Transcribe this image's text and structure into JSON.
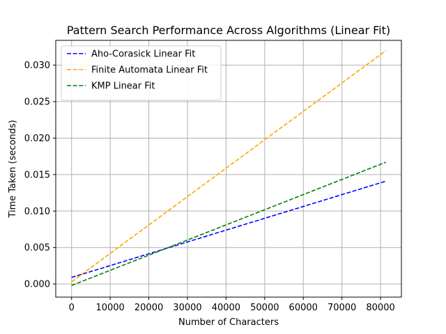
{
  "chart_data": {
    "type": "line",
    "title": "Pattern Search Performance Across Algorithms (Linear Fit)",
    "xlabel": "Number of Characters",
    "ylabel": "Time Taken (seconds)",
    "xlim": [
      -4100,
      85400
    ],
    "ylim": [
      -0.0018,
      0.0334
    ],
    "xticks": [
      0,
      10000,
      20000,
      30000,
      40000,
      50000,
      60000,
      70000,
      80000
    ],
    "xtick_labels": [
      "0",
      "10000",
      "20000",
      "30000",
      "40000",
      "50000",
      "60000",
      "70000",
      "80000"
    ],
    "yticks": [
      0.0,
      0.005,
      0.01,
      0.015,
      0.02,
      0.025,
      0.03
    ],
    "ytick_labels": [
      "0.000",
      "0.005",
      "0.010",
      "0.015",
      "0.020",
      "0.025",
      "0.030"
    ],
    "grid": true,
    "legend_position": "top-left",
    "series": [
      {
        "name": "Aho-Corasick Linear Fit",
        "color": "#0000ff",
        "style": "dashed",
        "x": [
          0,
          81400
        ],
        "y": [
          0.0009,
          0.0141
        ]
      },
      {
        "name": "Finite Automata Linear Fit",
        "color": "#ffa500",
        "style": "dashed",
        "x": [
          0,
          81400
        ],
        "y": [
          0.0003,
          0.032
        ]
      },
      {
        "name": "KMP Linear Fit",
        "color": "#008000",
        "style": "dashed",
        "x": [
          0,
          81400
        ],
        "y": [
          -0.0002,
          0.0167
        ]
      }
    ]
  }
}
